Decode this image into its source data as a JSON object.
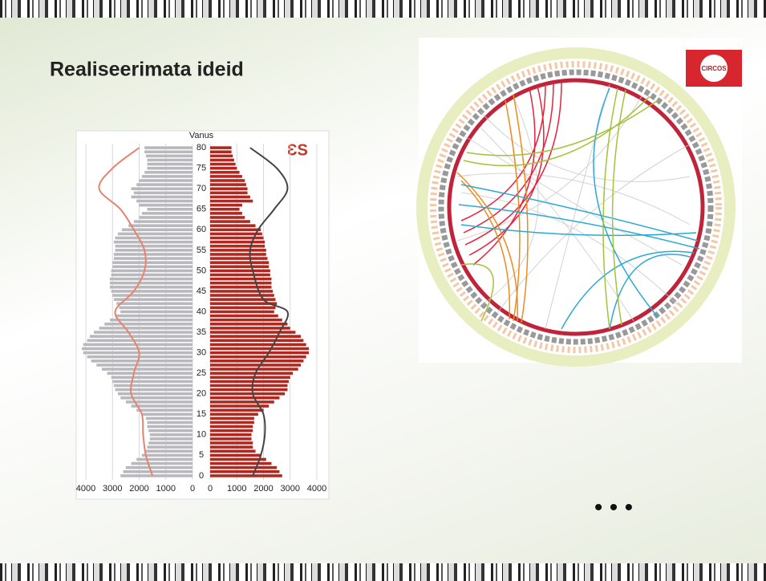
{
  "slide": {
    "title": "Realiseerimata ideid",
    "ellipsis": "• • •",
    "circos_logo": "CIRCOS"
  },
  "chart_data": {
    "type": "pyramid",
    "y_label": "Vanus",
    "logo": "ƐS",
    "y": [
      0,
      1,
      2,
      3,
      4,
      5,
      6,
      7,
      8,
      9,
      10,
      11,
      12,
      13,
      14,
      15,
      16,
      17,
      18,
      19,
      20,
      21,
      22,
      23,
      24,
      25,
      26,
      27,
      28,
      29,
      30,
      31,
      32,
      33,
      34,
      35,
      36,
      37,
      38,
      39,
      40,
      41,
      42,
      43,
      44,
      45,
      46,
      47,
      48,
      49,
      50,
      51,
      52,
      53,
      54,
      55,
      56,
      57,
      58,
      59,
      60,
      61,
      62,
      63,
      64,
      65,
      66,
      67,
      68,
      69,
      70,
      71,
      72,
      73,
      74,
      75,
      76,
      77,
      78,
      79,
      80
    ],
    "ylim": [
      -1,
      81
    ],
    "yticks": [
      0,
      5,
      10,
      15,
      20,
      25,
      30,
      35,
      40,
      45,
      50,
      55,
      60,
      65,
      70,
      75,
      80
    ],
    "xlim": [
      4000,
      0
    ],
    "xticks": [
      4000,
      3000,
      2000,
      1000,
      0
    ],
    "x2lim": [
      0,
      4000
    ],
    "x2ticks": [
      0,
      1000,
      2000,
      3000,
      4000
    ],
    "grid": true,
    "series": [
      {
        "color": "#b9b9bd",
        "axis": "x",
        "values": [
          2700,
          2600,
          2500,
          2300,
          2100,
          1900,
          1800,
          1700,
          1650,
          1600,
          1600,
          1650,
          1700,
          1700,
          1750,
          1900,
          2100,
          2300,
          2500,
          2700,
          2800,
          2900,
          2950,
          3000,
          3050,
          3200,
          3400,
          3600,
          3800,
          3950,
          4100,
          4150,
          4100,
          3950,
          3850,
          3700,
          3500,
          3300,
          3100,
          2900,
          2700,
          2750,
          2850,
          2950,
          3000,
          3050,
          3100,
          3100,
          3100,
          3050,
          3050,
          3000,
          3000,
          2950,
          2950,
          2900,
          2900,
          2950,
          2900,
          2800,
          2650,
          2400,
          2200,
          2000,
          1900,
          1700,
          2000,
          2100,
          2300,
          2200,
          2300,
          2100,
          2000,
          1900,
          1800,
          1700,
          1700,
          1700,
          1750,
          1800,
          1800
        ]
      },
      {
        "color": "#b3271e",
        "axis": "x2",
        "values": [
          2700,
          2600,
          2500,
          2300,
          2100,
          1900,
          1700,
          1600,
          1600,
          1550,
          1550,
          1600,
          1600,
          1650,
          1650,
          1800,
          2000,
          2200,
          2400,
          2600,
          2800,
          2900,
          2900,
          2950,
          3000,
          3100,
          3300,
          3400,
          3500,
          3600,
          3700,
          3700,
          3600,
          3500,
          3400,
          3200,
          3000,
          2900,
          2700,
          2550,
          2400,
          2450,
          2500,
          2450,
          2400,
          2350,
          2300,
          2300,
          2300,
          2250,
          2250,
          2200,
          2200,
          2150,
          2100,
          2100,
          2050,
          2050,
          2000,
          1950,
          1900,
          1700,
          1500,
          1300,
          1200,
          1100,
          1200,
          1600,
          1500,
          1400,
          1400,
          1350,
          1300,
          1200,
          1100,
          1000,
          950,
          900,
          850,
          800,
          800
        ]
      }
    ],
    "lines": [
      {
        "color": "#e8826e",
        "axis": "x",
        "y": [
          0,
          5,
          10,
          15,
          20,
          25,
          30,
          35,
          40,
          45,
          50,
          55,
          60,
          65,
          70,
          75,
          80
        ],
        "values": [
          1500,
          1750,
          1850,
          1900,
          2300,
          2200,
          2000,
          2400,
          2900,
          2200,
          1800,
          1800,
          2200,
          2700,
          3500,
          3000,
          2000
        ]
      },
      {
        "color": "#444444",
        "axis": "x2",
        "y": [
          0,
          5,
          10,
          15,
          20,
          25,
          30,
          35,
          40,
          43,
          50,
          55,
          60,
          65,
          70,
          75,
          80
        ],
        "values": [
          1600,
          1900,
          2050,
          2000,
          1600,
          1700,
          2200,
          2600,
          2900,
          2000,
          1600,
          1500,
          1800,
          2400,
          2900,
          2500,
          1500
        ]
      }
    ]
  }
}
